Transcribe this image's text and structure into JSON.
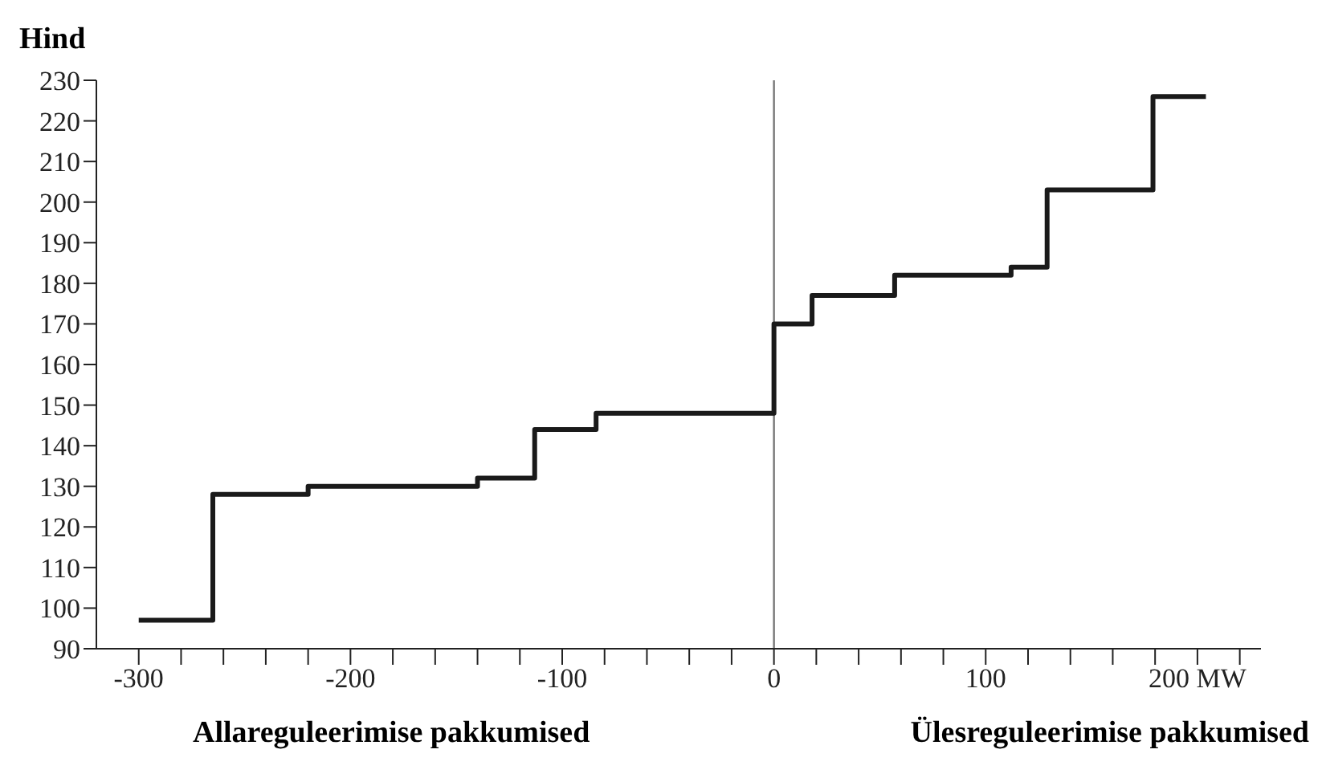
{
  "chart_data": {
    "type": "step",
    "ylabel": "Hind",
    "annotations": [
      "Allareguleerimise pakkumised",
      "Ülesreguleerimise pakkumised"
    ],
    "x": [
      -300,
      -265,
      -220,
      -140,
      -113,
      -84,
      0,
      18,
      57,
      112,
      129,
      179,
      204
    ],
    "series": [
      {
        "color": "#1a1a1a",
        "values": [
          97,
          128,
          130,
          132,
          144,
          148,
          170,
          177,
          182,
          184,
          203,
          226,
          226
        ]
      }
    ],
    "marker": "none",
    "xlim": [
      -320,
      230
    ],
    "xticks": [
      {
        "value": -300,
        "label": "-300"
      },
      {
        "value": -280,
        "label": null
      },
      {
        "value": -260,
        "label": null
      },
      {
        "value": -240,
        "label": null
      },
      {
        "value": -220,
        "label": null
      },
      {
        "value": -200,
        "label": "-200"
      },
      {
        "value": -180,
        "label": null
      },
      {
        "value": -160,
        "label": null
      },
      {
        "value": -140,
        "label": null
      },
      {
        "value": -120,
        "label": null
      },
      {
        "value": -100,
        "label": "-100"
      },
      {
        "value": -80,
        "label": null
      },
      {
        "value": -60,
        "label": null
      },
      {
        "value": -40,
        "label": null
      },
      {
        "value": -20,
        "label": null
      },
      {
        "value": 0,
        "label": "0"
      },
      {
        "value": 20,
        "label": null
      },
      {
        "value": 40,
        "label": null
      },
      {
        "value": 60,
        "label": null
      },
      {
        "value": 80,
        "label": null
      },
      {
        "value": 100,
        "label": "100"
      },
      {
        "value": 120,
        "label": null
      },
      {
        "value": 140,
        "label": null
      },
      {
        "value": 160,
        "label": null
      },
      {
        "value": 180,
        "label": null
      },
      {
        "value": 200,
        "label": "200 MW"
      },
      {
        "value": 220,
        "label": null
      }
    ],
    "ylim": [
      90,
      230
    ],
    "yticks": [
      90,
      100,
      110,
      120,
      130,
      140,
      150,
      160,
      170,
      180,
      190,
      200,
      210,
      220,
      230
    ],
    "ref_lines": [
      {
        "axis": "x",
        "value": 0,
        "color": "#777777"
      }
    ]
  }
}
